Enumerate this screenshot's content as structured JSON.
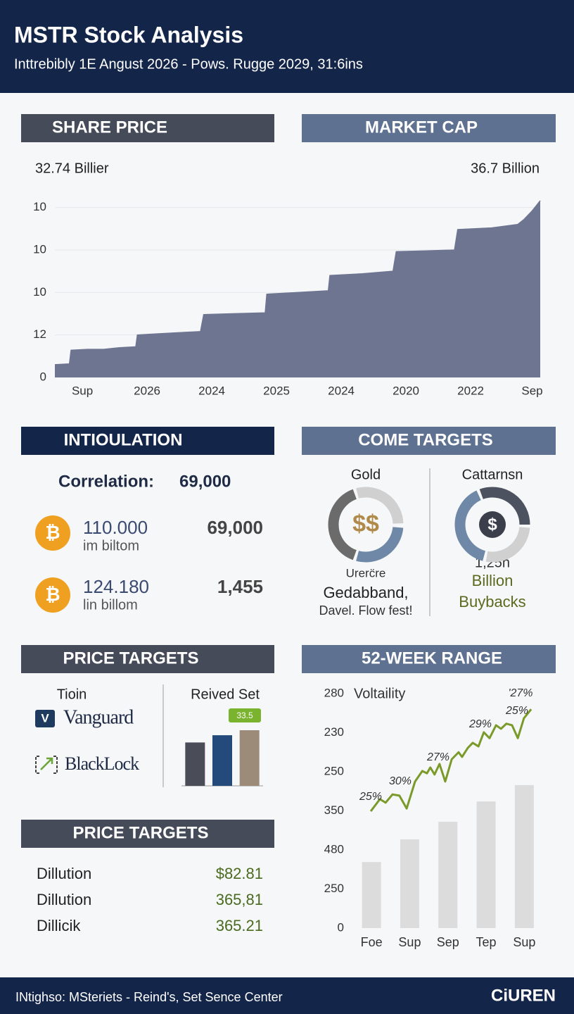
{
  "header": {
    "title": "MSTR Stock Analysis",
    "subtitle": "Inttrebibly 1E Angust 2026 - Pows. Rugge 2029, 31:6ins"
  },
  "share_section": {
    "heading_left": "SHARE PRICE",
    "heading_right": "MARKET CAP",
    "stat_left": "32.74 Billier",
    "stat_right": "36.7 Billion"
  },
  "correlation_section": {
    "heading": "INTIOULATION",
    "label": "Correlation:",
    "label_value": "69,000",
    "rows": [
      {
        "icon": "₿",
        "amount": "110.000",
        "unit": "im biltom",
        "value": "69,000"
      },
      {
        "icon": "₿",
        "amount": "124.180",
        "unit": "lin billom",
        "value": "1,455"
      }
    ]
  },
  "targets_section": {
    "heading": "COME TARGETS",
    "left": {
      "title": "Gold",
      "symbol": "$$",
      "lines": [
        "Urerc̈re",
        "Gedabband,",
        "Davel. Flow fest!"
      ]
    },
    "right": {
      "title": "Cattarnsn",
      "symbol": "$",
      "lines": [
        "1,25h",
        "Billion",
        "Buybacks"
      ]
    }
  },
  "price_targets": {
    "heading": "PRICE TARGETS",
    "column_title": "Tioin",
    "vanguard_icon": "V",
    "brands": [
      "Vanguard",
      "BlackLock"
    ]
  },
  "price_targets_2": {
    "heading": "PRICE TARGETS",
    "rows": [
      [
        "Dillution",
        "$82.81"
      ],
      [
        "Dillution",
        "365,81"
      ],
      [
        "Dillicik",
        "365.21"
      ]
    ]
  },
  "range_section": {
    "heading": "52-WEEK RANGE"
  },
  "footer": {
    "text": "INtighso: MSteriets - Reind's, Set Sence Center",
    "brand": "CiUREN"
  },
  "chart_data": [
    {
      "type": "area",
      "color": "#6e7591",
      "grid": true,
      "x": [
        0,
        0.9,
        1.0,
        2,
        3,
        4,
        5,
        5.1,
        6,
        8,
        9,
        9.2,
        11,
        13,
        13.1,
        15,
        16.9,
        17,
        19,
        20.9,
        21.1,
        23,
        24.7,
        24.9,
        27,
        28.6,
        29,
        29.5,
        30
      ],
      "values": [
        7.5,
        8,
        16,
        16.5,
        16.5,
        17.5,
        18,
        25,
        25.5,
        26.5,
        27,
        37,
        37.5,
        38,
        49,
        50,
        51,
        60,
        61,
        62.5,
        74,
        74.5,
        75,
        87,
        88,
        90,
        93,
        98,
        104
      ],
      "xlim": [
        0,
        30
      ],
      "xticks": [
        {
          "value": 1.7,
          "label": "Sup"
        },
        {
          "value": 5.7,
          "label": "2026"
        },
        {
          "value": 9.7,
          "label": "2024"
        },
        {
          "value": 13.7,
          "label": "2025"
        },
        {
          "value": 17.7,
          "label": "2024"
        },
        {
          "value": 21.7,
          "label": "2020"
        },
        {
          "value": 25.7,
          "label": "2022"
        },
        {
          "value": 29.5,
          "label": "Sep"
        }
      ],
      "ylim": [
        0,
        104
      ],
      "yticks": [
        0,
        {
          "value": 25,
          "label": "12"
        },
        {
          "value": 50,
          "label": "10"
        },
        {
          "value": 75,
          "label": "10"
        },
        {
          "value": 100,
          "label": "10"
        }
      ]
    },
    {
      "type": "bar",
      "title": "Reived Set",
      "badge": "33.5",
      "categories": [
        null,
        null,
        null
      ],
      "values": [
        78,
        91,
        100
      ],
      "colors": [
        "#4a4d57",
        "#234a7a",
        "#9c8b78"
      ],
      "ylim": [
        0,
        100
      ]
    },
    {
      "type": "bar",
      "grid": false,
      "categories": [
        "Foe",
        "Sup",
        "Sep",
        "Tep",
        "Sup"
      ],
      "xlim": [
        0,
        5
      ],
      "ylim": [
        0,
        6
      ],
      "yticks": [
        0,
        {
          "value": 1,
          "label": "250"
        },
        {
          "value": 2,
          "label": "480"
        },
        {
          "value": 3,
          "label": "350"
        },
        {
          "value": 4,
          "label": "250"
        },
        {
          "value": 5,
          "label": "230"
        },
        {
          "value": 6,
          "label": "280"
        }
      ],
      "series": [
        {
          "type": "bar",
          "color": "#dcdcdc",
          "values": [
            1.69,
            2.27,
            2.72,
            3.24,
            3.66
          ]
        },
        {
          "type": "line",
          "name": "Voltaility",
          "color": "#7a9a2a",
          "x": [
            0.48,
            0.72,
            0.87,
            1.05,
            1.23,
            1.42,
            1.64,
            1.83,
            1.95,
            2.04,
            2.15,
            2.28,
            2.43,
            2.6,
            2.78,
            2.87,
            3.02,
            3.15,
            3.3,
            3.44,
            3.59,
            3.76,
            3.89,
            4.03,
            4.18,
            4.33,
            4.49,
            4.68
          ],
          "values": [
            2.99,
            3.3,
            3.21,
            3.42,
            3.39,
            3.06,
            3.75,
            4.02,
            3.96,
            4.11,
            3.93,
            4.2,
            3.75,
            4.32,
            4.5,
            4.38,
            4.61,
            4.74,
            4.65,
            5.01,
            4.86,
            5.19,
            5.1,
            5.23,
            5.19,
            4.86,
            5.37,
            5.6
          ]
        }
      ],
      "annotations": [
        "25%",
        "30%",
        "27%",
        "29%",
        "25%",
        "'27%"
      ]
    }
  ]
}
